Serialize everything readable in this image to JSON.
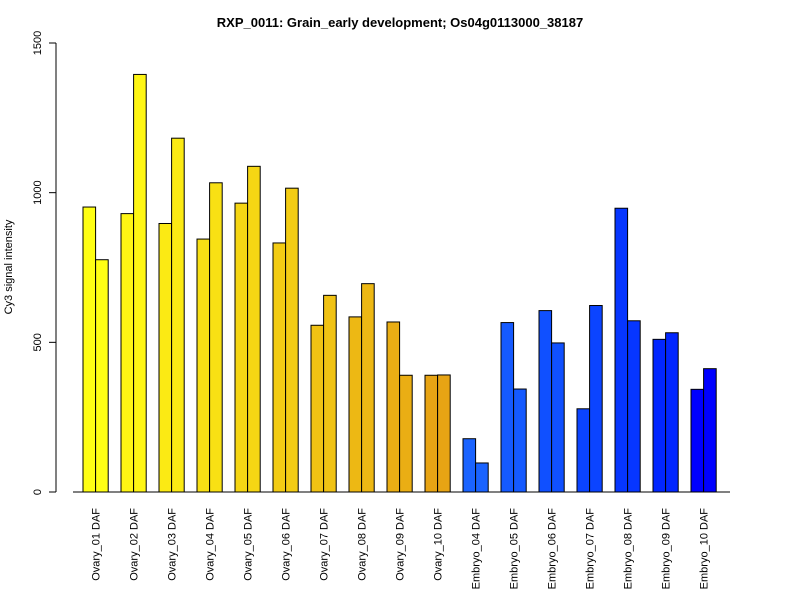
{
  "chart_data": {
    "type": "bar",
    "title": "RXP_0011: Grain_early development; Os04g0113000_38187",
    "ylabel": "Cy3 signal intensity",
    "xlabel": "",
    "ylim": [
      0,
      1500
    ],
    "yticks": [
      0,
      500,
      1000,
      1500
    ],
    "grid": false,
    "categories": [
      "Ovary_01 DAF",
      "Ovary_02 DAF",
      "Ovary_03 DAF",
      "Ovary_04 DAF",
      "Ovary_05 DAF",
      "Ovary_06 DAF",
      "Ovary_07 DAF",
      "Ovary_08 DAF",
      "Ovary_09 DAF",
      "Ovary_10 DAF",
      "Embryo_04 DAF",
      "Embryo_05 DAF",
      "Embryo_06 DAF",
      "Embryo_07 DAF",
      "Embryo_08 DAF",
      "Embryo_09 DAF",
      "Embryo_10 DAF"
    ],
    "series": [
      {
        "values": [
          952,
          930,
          897,
          845,
          965,
          832,
          557,
          585,
          568,
          390,
          178,
          566,
          606,
          278,
          948,
          510,
          343
        ]
      },
      {
        "values": [
          776,
          1395,
          1182,
          1033,
          1088,
          1015,
          657,
          696,
          390,
          391,
          97,
          344,
          498,
          623,
          572,
          532,
          412
        ]
      }
    ],
    "colors": [
      "#FFFF14",
      "#FEF514",
      "#FBEA14",
      "#F8E014",
      "#F5D614",
      "#F3CC14",
      "#F0C214",
      "#EDB814",
      "#EAAE14",
      "#E7A414",
      "#1A63FF",
      "#155AFF",
      "#1050FF",
      "#0B44FF",
      "#0636FF",
      "#0226FF",
      "#0000FF"
    ]
  }
}
